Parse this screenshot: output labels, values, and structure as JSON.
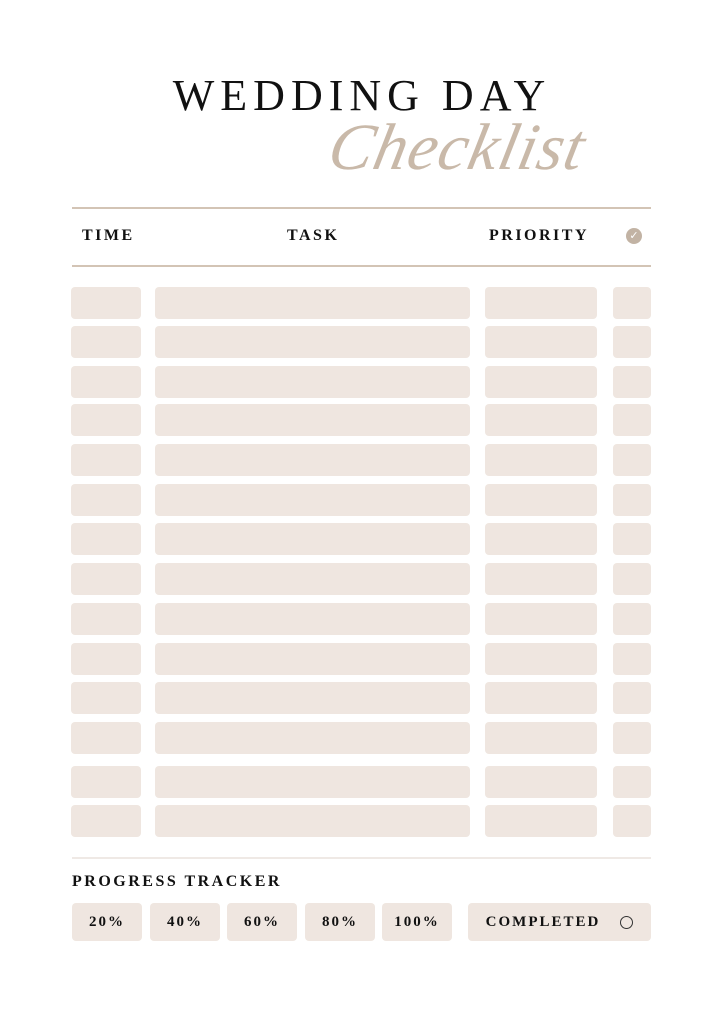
{
  "header": {
    "title": "WEDDING DAY",
    "script": "Checklist"
  },
  "columns": {
    "time": "TIME",
    "task": "TASK",
    "priority": "PRIORITY",
    "done_icon": "check-circle-icon"
  },
  "row_count": 14,
  "progress": {
    "label": "PROGRESS TRACKER",
    "steps": [
      "20%",
      "40%",
      "60%",
      "80%",
      "100%"
    ],
    "completed": "COMPLETED"
  },
  "colors": {
    "accent": "#c9b9a9",
    "cell": "#efe6e0",
    "rule": "#d3c4b5"
  }
}
